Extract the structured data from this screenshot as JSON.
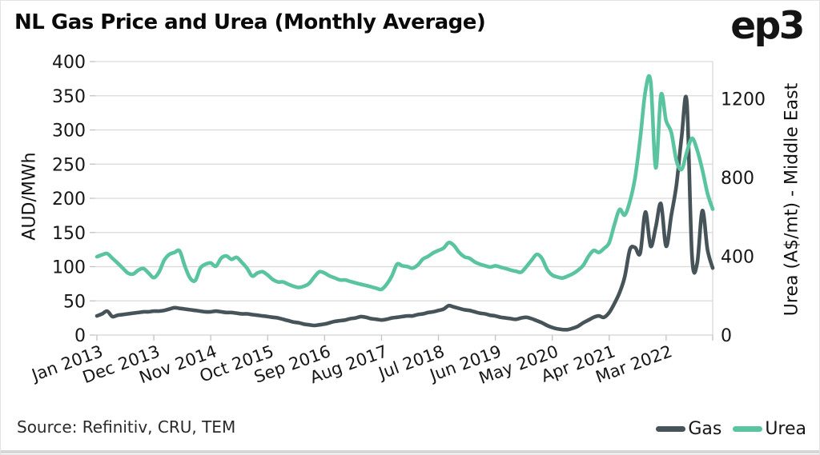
{
  "header": {
    "title": "NL Gas Price and Urea (Monthly Average)",
    "logo": "ep3"
  },
  "footer": {
    "source": "Source: Refinitiv, CRU, TEM"
  },
  "legend": [
    {
      "label": "Gas",
      "color": "#465459"
    },
    {
      "label": "Urea",
      "color": "#5ac4a0"
    }
  ],
  "colors": {
    "gas_line": "#465459",
    "urea_line": "#5ac4a0",
    "gridline": "#d9d9d9",
    "tick": "#c2c2c2",
    "text": "#161616",
    "bottom_strip": "#d6d6d6"
  },
  "chart_data": {
    "type": "line",
    "title": "NL Gas Price and Urea (Monthly Average)",
    "x_frequency": "monthly",
    "x_start": "Jan 2013",
    "x_end": "Dec 2022",
    "x_tick_labels": [
      "Jan 2013",
      "Dec 2013",
      "Nov 2014",
      "Oct 2015",
      "Sep 2016",
      "Aug 2017",
      "Jul 2018",
      "Jun 2019",
      "May 2020",
      "Apr 2021",
      "Mar 2022"
    ],
    "x_tick_step_months": 11,
    "grid": "horizontal",
    "legend_position": "bottom-right",
    "left_axis": {
      "label": "AUD/MWh",
      "ticks": [
        0,
        50,
        100,
        150,
        200,
        250,
        300,
        350,
        400
      ],
      "range": [
        0,
        400
      ]
    },
    "right_axis": {
      "label": "Urea (A$/mt) - Middle East",
      "ticks": [
        0,
        400,
        800,
        1200
      ],
      "range": [
        0,
        1390
      ]
    },
    "series": [
      {
        "name": "Gas",
        "axis": "left",
        "unit": "AUD/MWh",
        "color": "#465459",
        "values": [
          28,
          31,
          35,
          27,
          29,
          30,
          31,
          32,
          33,
          34,
          34,
          35,
          35,
          36,
          38,
          40,
          39,
          38,
          37,
          36,
          35,
          34,
          34,
          35,
          34,
          33,
          33,
          32,
          31,
          31,
          30,
          29,
          28,
          27,
          26,
          25,
          23,
          21,
          19,
          18,
          16,
          15,
          14,
          15,
          16,
          18,
          20,
          21,
          22,
          24,
          25,
          27,
          26,
          24,
          23,
          22,
          23,
          25,
          26,
          27,
          28,
          28,
          30,
          31,
          33,
          34,
          36,
          38,
          43,
          41,
          39,
          37,
          36,
          34,
          32,
          31,
          29,
          28,
          26,
          25,
          24,
          23,
          25,
          26,
          24,
          21,
          18,
          14,
          11,
          9,
          8,
          8,
          10,
          13,
          18,
          22,
          26,
          28,
          26,
          33,
          46,
          62,
          85,
          125,
          128,
          120,
          180,
          130,
          158,
          192,
          130,
          175,
          220,
          290,
          341,
          115,
          105,
          182,
          125,
          98
        ]
      },
      {
        "name": "Urea",
        "axis": "right",
        "unit": "A$/mt",
        "color": "#5ac4a0",
        "values": [
          398,
          408,
          414,
          390,
          366,
          340,
          315,
          310,
          330,
          338,
          315,
          292,
          320,
          380,
          410,
          420,
          427,
          350,
          290,
          277,
          340,
          360,
          366,
          350,
          390,
          402,
          385,
          395,
          370,
          340,
          300,
          315,
          322,
          305,
          282,
          270,
          270,
          258,
          248,
          242,
          248,
          262,
          295,
          322,
          315,
          300,
          290,
          280,
          280,
          272,
          265,
          258,
          252,
          245,
          238,
          232,
          258,
          300,
          360,
          352,
          348,
          340,
          356,
          386,
          400,
          418,
          430,
          442,
          470,
          455,
          420,
          398,
          390,
          372,
          360,
          352,
          346,
          352,
          345,
          338,
          330,
          324,
          320,
          348,
          380,
          410,
          390,
          334,
          305,
          295,
          290,
          300,
          312,
          330,
          355,
          400,
          430,
          420,
          440,
          470,
          560,
          638,
          610,
          680,
          800,
          1000,
          1240,
          1290,
          850,
          1220,
          1090,
          1030,
          885,
          842,
          930,
          1000,
          940,
          840,
          720,
          640
        ]
      }
    ]
  }
}
